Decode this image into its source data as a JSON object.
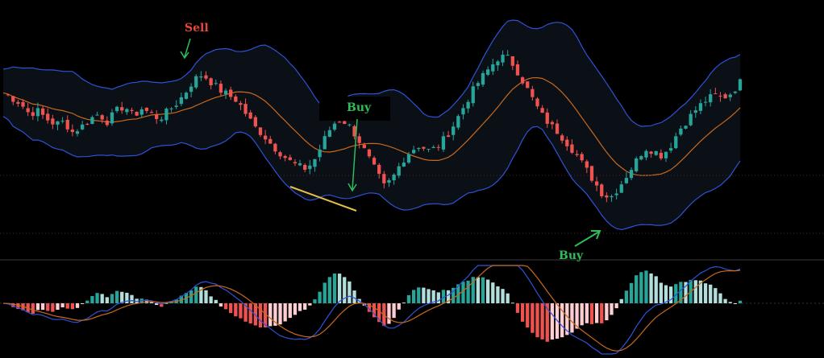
{
  "colors": {
    "background": "#000000",
    "band_fill": "#0b0f16",
    "band_line": "#2f52d6",
    "mid_line": "#c8691d",
    "bull": "#26a69a",
    "bear": "#ef5350",
    "trend_line": "#e6c04a",
    "signal_sell": "#e8473c",
    "signal_buy": "#2ebd5a",
    "macd_line": "#2f52d6",
    "signal_line": "#c8691d",
    "hist_pos": "#26a69a",
    "hist_neg": "#ef5350",
    "hist_pos_light": "#b2dfdb",
    "hist_neg_light": "#ffcdd2"
  },
  "annotations": [
    {
      "text": "Sell",
      "kind": "sell"
    },
    {
      "text": "Buy",
      "kind": "buy"
    },
    {
      "text": "Buy",
      "kind": "buy"
    }
  ],
  "chart_data": [
    {
      "type": "candlestick",
      "overlays": [
        "bollinger_upper",
        "bollinger_middle",
        "bollinger_lower"
      ],
      "price_trend": [
        48,
        46,
        44,
        40,
        41,
        38,
        36,
        37,
        33,
        35,
        38,
        40,
        37,
        41,
        43,
        39,
        42,
        40,
        38,
        41,
        44,
        48,
        53,
        55,
        52,
        49,
        47,
        45,
        40,
        35,
        32,
        28,
        25,
        22,
        20,
        19,
        23,
        30,
        36,
        38,
        35,
        30,
        24,
        18,
        12,
        16,
        22,
        26,
        28,
        26,
        27,
        31,
        36,
        42,
        48,
        53,
        57,
        61,
        62,
        58,
        52,
        46,
        40,
        36,
        33,
        29,
        25,
        20,
        15,
        10,
        8,
        12,
        17,
        22,
        27,
        26,
        24,
        28,
        34,
        38,
        42,
        45,
        47,
        46,
        48,
        52
      ],
      "grid": false
    },
    {
      "type": "histogram",
      "indicator": "MACD",
      "grid": false
    }
  ]
}
